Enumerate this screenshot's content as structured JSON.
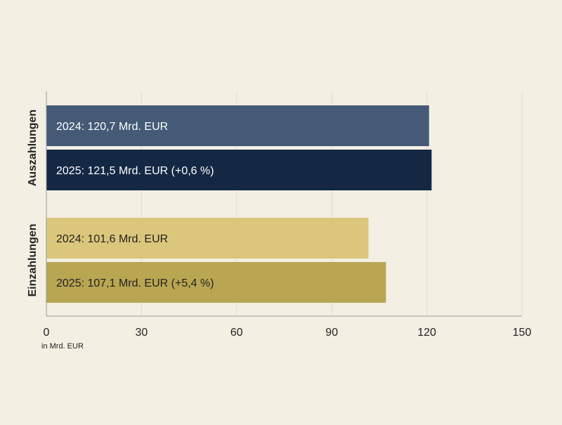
{
  "chart_data": {
    "type": "bar",
    "orientation": "horizontal",
    "title": "",
    "xlabel": "in Mrd. EUR",
    "ylabel": "",
    "xlim": [
      0,
      150
    ],
    "x_ticks": [
      0,
      30,
      60,
      90,
      120,
      150
    ],
    "grid": "vertical",
    "groups": [
      {
        "name": "Auszahlungen",
        "bars": [
          {
            "year": "2024",
            "value": 120.7,
            "label": "2024: 120,7 Mrd. EUR",
            "color": "#445a77"
          },
          {
            "year": "2025",
            "value": 121.5,
            "label": "2025: 121,5 Mrd. EUR (+0,6 %)",
            "color": "#142844"
          }
        ]
      },
      {
        "name": "Einzahlungen",
        "bars": [
          {
            "year": "2024",
            "value": 101.6,
            "label": "2024: 101,6 Mrd. EUR",
            "color": "#dbc77b"
          },
          {
            "year": "2025",
            "value": 107.1,
            "label": "2025: 107,1 Mrd. EUR (+5,4 %)",
            "color": "#b8a652"
          }
        ]
      }
    ]
  },
  "colors": {
    "background": "#f3efe3",
    "grid": "#e0dccf",
    "axis": "#999999",
    "text_dark": "#222222",
    "text_light": "#ffffff"
  }
}
